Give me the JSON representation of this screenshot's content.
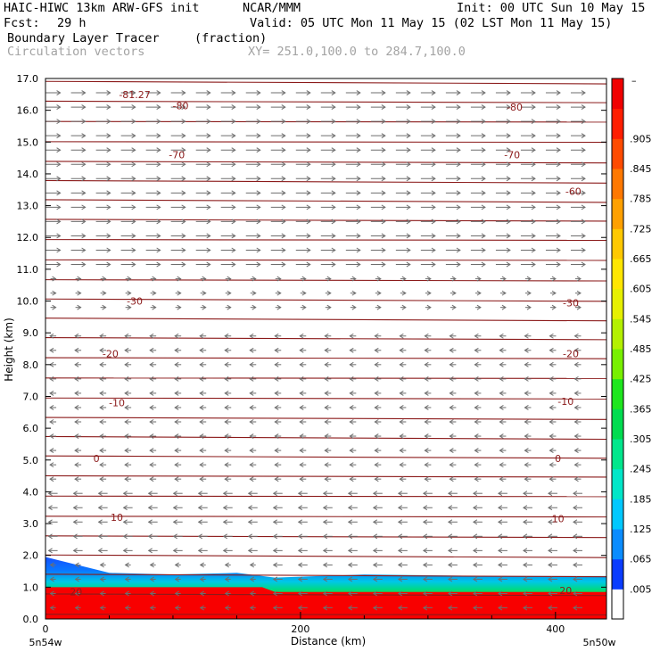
{
  "header": {
    "model": "HAIC-HIWC 13km ARW-GFS init",
    "org": "NCAR/MMM",
    "init": "Init: 00 UTC Sun 10 May 15",
    "fcst_label": "Fcst:",
    "fcst_value": "29 h",
    "valid": "Valid: 05 UTC Mon 11 May 15 (02 LST Mon 11 May 15)",
    "field": "Boundary Layer Tracer",
    "field_units": "(fraction)",
    "vectors": "Circulation vectors",
    "xy": "XY= 251.0,100.0 to 284.7,100.0"
  },
  "chart_data": {
    "type": "heatmap",
    "xlabel": "Distance (km)",
    "ylabel": "Height (km)",
    "xlim": [
      0,
      440
    ],
    "ylim": [
      0,
      17
    ],
    "x_ticks": [
      "0",
      "200",
      "400"
    ],
    "x_endpoint_labels": [
      "5n54w",
      "5n50w"
    ],
    "y_ticks": [
      "0.0",
      "1.0",
      "2.0",
      "3.0",
      "4.0",
      "5.0",
      "6.0",
      "7.0",
      "8.0",
      "9.0",
      "10.0",
      "11.0",
      "12.0",
      "13.0",
      "14.0",
      "15.0",
      "16.0",
      "17.0"
    ],
    "colorbar": {
      "labels": [
        ".005",
        ".065",
        ".125",
        ".185",
        ".245",
        ".305",
        ".365",
        ".425",
        ".485",
        ".545",
        ".605",
        ".665",
        ".725",
        ".785",
        ".845",
        ".905"
      ],
      "top_label": "–",
      "colors": [
        "#ffffff",
        "#0a3cff",
        "#0a8cff",
        "#00c8ff",
        "#00e6c8",
        "#00e68c",
        "#00dc50",
        "#1ee61e",
        "#78f000",
        "#b4f000",
        "#e6f000",
        "#ffe600",
        "#ffc800",
        "#ffa000",
        "#ff7800",
        "#ff4b00",
        "#ff1e00",
        "#f00000"
      ]
    },
    "tracer_layer": {
      "top_height_km": [
        [
          0,
          1.95
        ],
        [
          20,
          1.75
        ],
        [
          50,
          1.45
        ],
        [
          100,
          1.4
        ],
        [
          150,
          1.45
        ],
        [
          180,
          1.3
        ],
        [
          250,
          1.4
        ],
        [
          350,
          1.35
        ],
        [
          440,
          1.35
        ]
      ],
      "saturated_top_km": [
        [
          0,
          1.0
        ],
        [
          100,
          1.0
        ],
        [
          170,
          1.0
        ],
        [
          180,
          0.85
        ],
        [
          440,
          0.85
        ]
      ]
    },
    "temperature_contours_degC": {
      "levels": [
        -81.27,
        -80,
        -70,
        -60,
        -30,
        -20,
        -10,
        0,
        10,
        20
      ],
      "labels": [
        {
          "text": "-81.27",
          "x": 70,
          "y": 16.5
        },
        {
          "text": "-80",
          "x": 106,
          "y": 16.15
        },
        {
          "text": "-80",
          "x": 368,
          "y": 16.1
        },
        {
          "text": "-70",
          "x": 103,
          "y": 14.6
        },
        {
          "text": "-70",
          "x": 366,
          "y": 14.6
        },
        {
          "text": "-60",
          "x": 414,
          "y": 13.45
        },
        {
          "text": "-30",
          "x": 70,
          "y": 10.0
        },
        {
          "text": "-30",
          "x": 412,
          "y": 9.95
        },
        {
          "text": "-20",
          "x": 51,
          "y": 8.35
        },
        {
          "text": "-20",
          "x": 412,
          "y": 8.35
        },
        {
          "text": "-10",
          "x": 56,
          "y": 6.8
        },
        {
          "text": "-10",
          "x": 408,
          "y": 6.85
        },
        {
          "text": "0",
          "x": 40,
          "y": 5.05
        },
        {
          "text": "0",
          "x": 402,
          "y": 5.05
        },
        {
          "text": "10",
          "x": 56,
          "y": 3.2
        },
        {
          "text": "10",
          "x": 402,
          "y": 3.15
        },
        {
          "text": "20",
          "x": 24,
          "y": 0.85
        },
        {
          "text": "20",
          "x": 408,
          "y": 0.9
        }
      ]
    }
  }
}
